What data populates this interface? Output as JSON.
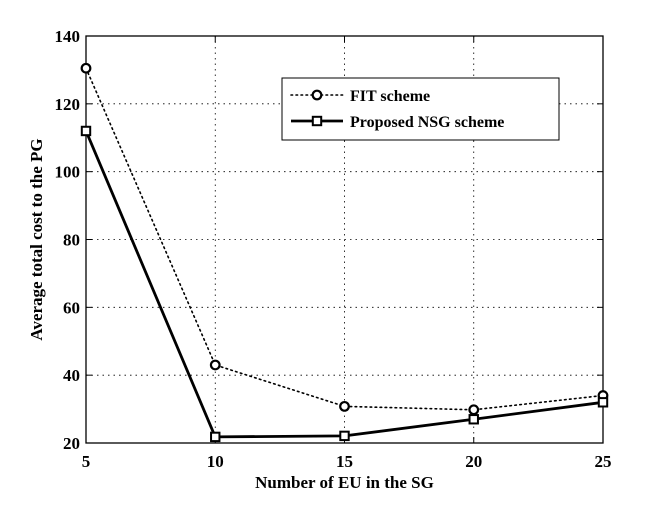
{
  "chart_data": {
    "type": "line",
    "title": "",
    "xlabel": "Number of EU in the SG",
    "ylabel": "Average total cost to the PG",
    "x": [
      5,
      10,
      15,
      20,
      25
    ],
    "xlim": [
      5,
      25
    ],
    "ylim": [
      20,
      140
    ],
    "xticks": [
      5,
      10,
      15,
      20,
      25
    ],
    "yticks": [
      20,
      40,
      60,
      80,
      100,
      120,
      140
    ],
    "grid": true,
    "legend_position": "top-right",
    "series": [
      {
        "name": "FIT scheme",
        "values": [
          130.5,
          43,
          30.8,
          29.8,
          34
        ],
        "line_style": "dotted",
        "marker": "circle",
        "color": "#000000"
      },
      {
        "name": "Proposed NSG scheme",
        "values": [
          112,
          21.8,
          22.1,
          27,
          32
        ],
        "line_style": "solid",
        "marker": "square",
        "color": "#000000"
      }
    ]
  }
}
